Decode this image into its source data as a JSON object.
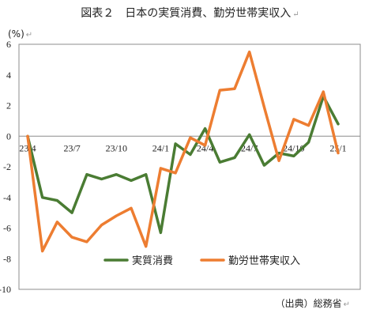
{
  "chart_data": {
    "type": "line",
    "title": "図表２　日本の実質消費、勤労世帯実収入",
    "unit_label": "(%)",
    "source": "（出典）総務省",
    "x_tick_labels": [
      "23/4",
      "23/7",
      "23/10",
      "24/1",
      "24/4",
      "24/7",
      "24/10",
      "25/1"
    ],
    "ylim": [
      -10,
      6
    ],
    "y_ticks": [
      6,
      4,
      2,
      0,
      -2,
      -4,
      -6,
      -8,
      -10
    ],
    "grid": false,
    "legend_position": "bottom",
    "x": [
      "23/4",
      "23/5",
      "23/6",
      "23/7",
      "23/8",
      "23/9",
      "23/10",
      "23/11",
      "23/12",
      "24/1",
      "24/2",
      "24/3",
      "24/4",
      "24/5",
      "24/6",
      "24/7",
      "24/8",
      "24/9",
      "24/10",
      "24/11",
      "24/12",
      "25/1"
    ],
    "series": [
      {
        "name": "実質消費",
        "color": "#4a7c33",
        "values": [
          0,
          -4.0,
          -4.2,
          -5.0,
          -2.5,
          -2.8,
          -2.5,
          -2.9,
          -2.5,
          -6.3,
          -0.5,
          -1.2,
          0.5,
          -1.7,
          -1.4,
          0.1,
          -1.9,
          -1.1,
          -1.3,
          -0.4,
          2.6,
          0.8
        ]
      },
      {
        "name": "勤労世帯実収入",
        "color": "#ed7d31",
        "values": [
          0,
          -7.5,
          -5.6,
          -6.6,
          -6.9,
          -5.8,
          -5.2,
          -4.7,
          -7.2,
          -2.1,
          -2.4,
          -0.1,
          -0.6,
          3.0,
          3.1,
          5.5,
          1.9,
          -1.6,
          1.1,
          0.7,
          2.9,
          -1.1
        ]
      }
    ]
  }
}
